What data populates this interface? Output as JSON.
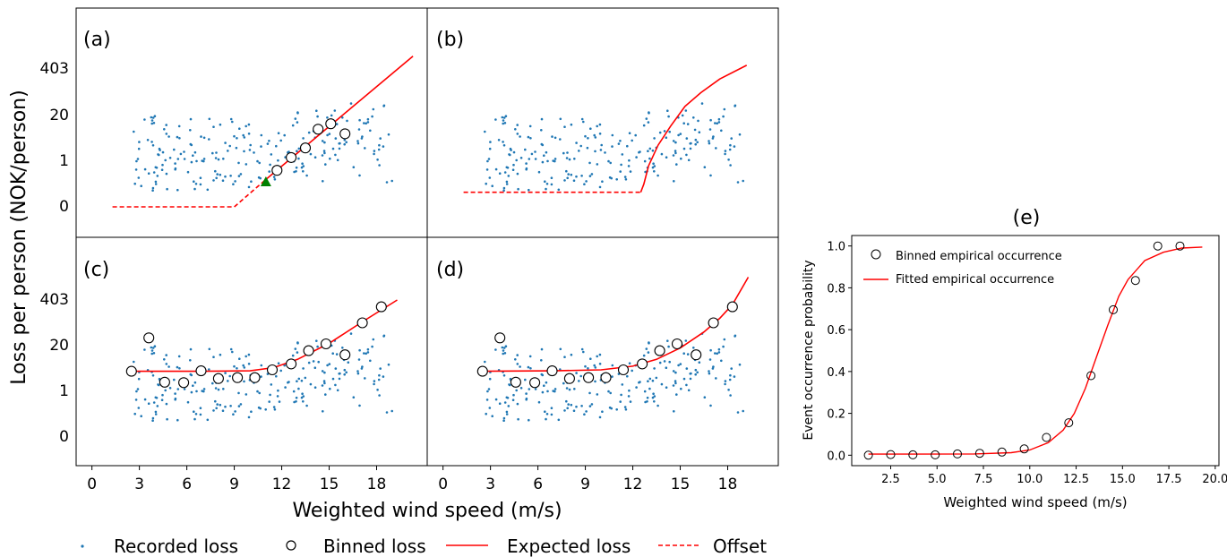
{
  "figure": {
    "ylabel_left": "Loss per person (NOK/person)",
    "xlabel_left": "Weighted wind speed (m/s)",
    "legend": {
      "recorded": "Recorded loss",
      "binned": "Binned loss",
      "expected": "Expected loss",
      "offset": "Offset"
    },
    "colors": {
      "scatter": "#1f77b4",
      "curve": "#ff0000",
      "triangle": "#008000",
      "marker": "#000000"
    }
  },
  "chart_data": [
    {
      "panel": "(a)",
      "type": "scatter",
      "x_ticks": [
        0,
        3,
        6,
        9,
        12,
        15,
        18
      ],
      "y_ticks": [
        "0",
        "1",
        "20",
        "403"
      ],
      "xlim": [
        -1,
        21.2
      ],
      "binned": [
        [
          11.7,
          0.8
        ],
        [
          12.6,
          1.08
        ],
        [
          13.5,
          1.29
        ],
        [
          14.3,
          1.7
        ],
        [
          15.1,
          1.82
        ],
        [
          16.0,
          1.6
        ]
      ],
      "expected": [
        [
          11.0,
          0.6
        ],
        [
          20.3,
          3.3
        ]
      ],
      "offset": [
        [
          1.3,
          0.0
        ],
        [
          9.0,
          0.0
        ],
        [
          11.0,
          0.6
        ]
      ],
      "marker_triangle": [
        11.0,
        0.55
      ]
    },
    {
      "panel": "(b)",
      "type": "scatter",
      "x_ticks": [
        0,
        3,
        6,
        9,
        12,
        15,
        18
      ],
      "y_ticks": [
        "0",
        "1",
        "20",
        "403"
      ],
      "xlim": [
        -1,
        21.2
      ],
      "expected": [
        [
          12.5,
          0.32
        ],
        [
          12.7,
          0.5
        ],
        [
          13.0,
          0.9
        ],
        [
          13.6,
          1.35
        ],
        [
          14.4,
          1.77
        ],
        [
          15.3,
          2.2
        ],
        [
          16.3,
          2.5
        ],
        [
          17.5,
          2.8
        ],
        [
          19.2,
          3.1
        ]
      ],
      "offset": [
        [
          1.3,
          0.32
        ],
        [
          12.5,
          0.32
        ]
      ]
    },
    {
      "panel": "(c)",
      "type": "scatter",
      "x_ticks": [
        0,
        3,
        6,
        9,
        12,
        15,
        18
      ],
      "y_ticks": [
        "0",
        "1",
        "20",
        "403"
      ],
      "xlim": [
        -1,
        21.2
      ],
      "binned": [
        [
          2.5,
          1.44
        ],
        [
          3.6,
          2.17
        ],
        [
          4.6,
          1.2
        ],
        [
          5.8,
          1.19
        ],
        [
          6.9,
          1.45
        ],
        [
          8.0,
          1.28
        ],
        [
          9.2,
          1.3
        ],
        [
          10.3,
          1.3
        ],
        [
          11.4,
          1.47
        ],
        [
          12.6,
          1.6
        ],
        [
          13.7,
          1.89
        ],
        [
          14.8,
          2.04
        ],
        [
          16.0,
          1.8
        ],
        [
          17.1,
          2.5
        ],
        [
          18.3,
          2.85
        ]
      ],
      "expected": [
        [
          2.3,
          1.44
        ],
        [
          7.0,
          1.44
        ],
        [
          10.0,
          1.45
        ],
        [
          11.5,
          1.52
        ],
        [
          13.0,
          1.7
        ],
        [
          15.0,
          2.05
        ],
        [
          17.0,
          2.5
        ],
        [
          19.3,
          3.0
        ]
      ]
    },
    {
      "panel": "(d)",
      "type": "scatter",
      "x_ticks": [
        0,
        3,
        6,
        9,
        12,
        15,
        18
      ],
      "y_ticks": [
        "0",
        "1",
        "20",
        "403"
      ],
      "xlim": [
        -1,
        21.2
      ],
      "binned": [
        [
          2.5,
          1.44
        ],
        [
          3.6,
          2.17
        ],
        [
          4.6,
          1.2
        ],
        [
          5.8,
          1.19
        ],
        [
          6.9,
          1.45
        ],
        [
          8.0,
          1.28
        ],
        [
          9.2,
          1.3
        ],
        [
          10.3,
          1.3
        ],
        [
          11.4,
          1.47
        ],
        [
          12.6,
          1.6
        ],
        [
          13.7,
          1.89
        ],
        [
          14.8,
          2.04
        ],
        [
          16.0,
          1.8
        ],
        [
          17.1,
          2.5
        ],
        [
          18.3,
          2.85
        ]
      ],
      "expected": [
        [
          2.3,
          1.44
        ],
        [
          7.0,
          1.45
        ],
        [
          10.0,
          1.47
        ],
        [
          12.0,
          1.55
        ],
        [
          13.5,
          1.7
        ],
        [
          15.0,
          1.95
        ],
        [
          16.5,
          2.3
        ],
        [
          17.5,
          2.6
        ],
        [
          18.3,
          2.9
        ],
        [
          19.3,
          3.5
        ]
      ]
    },
    {
      "panel": "(e)",
      "type": "line",
      "title": "(e)",
      "xlabel": "Weighted wind speed (m/s)",
      "ylabel": "Event occurrence probability",
      "x_ticks": [
        "2.5",
        "5.0",
        "7.5",
        "10.0",
        "12.5",
        "15.0",
        "17.5",
        "20.0"
      ],
      "y_ticks": [
        "0.0",
        "0.2",
        "0.4",
        "0.6",
        "0.8",
        "1.0"
      ],
      "xlim": [
        0.4,
        20.2
      ],
      "ylim": [
        -0.05,
        1.05
      ],
      "legend": [
        "Binned empirical occurrence",
        "Fitted empirical occurrence"
      ],
      "binned": [
        [
          1.3,
          0.0
        ],
        [
          2.5,
          0.003
        ],
        [
          3.7,
          0.002
        ],
        [
          4.9,
          0.002
        ],
        [
          6.1,
          0.006
        ],
        [
          7.3,
          0.009
        ],
        [
          8.5,
          0.015
        ],
        [
          9.7,
          0.03
        ],
        [
          10.9,
          0.085
        ],
        [
          12.1,
          0.155
        ],
        [
          13.3,
          0.38
        ],
        [
          14.5,
          0.695
        ],
        [
          15.7,
          0.835
        ],
        [
          16.9,
          1.0
        ],
        [
          18.1,
          1.0
        ]
      ],
      "fitted": [
        [
          1.3,
          0.005
        ],
        [
          4,
          0.005
        ],
        [
          7,
          0.006
        ],
        [
          9,
          0.012
        ],
        [
          10,
          0.025
        ],
        [
          11,
          0.06
        ],
        [
          11.8,
          0.12
        ],
        [
          12.4,
          0.2
        ],
        [
          13,
          0.32
        ],
        [
          13.6,
          0.47
        ],
        [
          14.2,
          0.62
        ],
        [
          14.8,
          0.76
        ],
        [
          15.3,
          0.84
        ],
        [
          16.2,
          0.93
        ],
        [
          17.2,
          0.97
        ],
        [
          18.2,
          0.99
        ],
        [
          19.3,
          0.995
        ]
      ]
    }
  ]
}
